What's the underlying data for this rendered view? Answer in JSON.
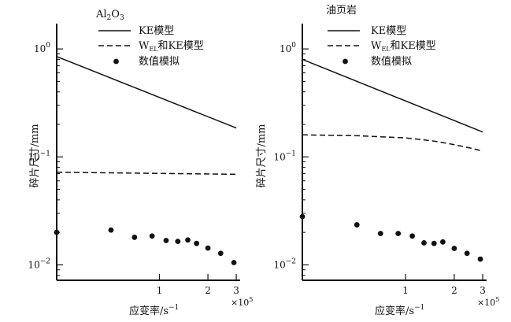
{
  "chart_data": [
    {
      "type": "line",
      "title": "Al2O3",
      "title_parts": [
        "Al",
        "2",
        "O",
        "3"
      ],
      "xlabel": "应变率/s",
      "xlabel_exp": "−1",
      "ylabel": "碎片尺寸/mm",
      "x_scale": "log",
      "y_scale": "log",
      "xlim": [
        23000,
        310000
      ],
      "ylim": [
        0.0072,
        1.45
      ],
      "x_ticks": [
        {
          "value": 100000,
          "label": "1"
        },
        {
          "value": 200000,
          "label": "2"
        },
        {
          "value": 300000,
          "label": "3"
        }
      ],
      "x_multiplier": {
        "base": "×10",
        "exp": "5"
      },
      "y_ticks": [
        {
          "value": 1,
          "base": "10",
          "exp": "0"
        },
        {
          "value": 0.1,
          "base": "10",
          "exp": "−1"
        },
        {
          "value": 0.01,
          "base": "10",
          "exp": "−2"
        }
      ],
      "legend_position": "top-right",
      "series": [
        {
          "name": "KE模型",
          "label": "KE模型",
          "style": "solid",
          "x": [
            23000,
            300000
          ],
          "y": [
            0.85,
            0.185
          ]
        },
        {
          "name": "WEL和KE模型",
          "label_parts": [
            "W",
            "EL",
            "和KE模型"
          ],
          "style": "dashed",
          "x": [
            23000,
            300000
          ],
          "y": [
            0.072,
            0.069
          ]
        },
        {
          "name": "数值模拟",
          "label": "数值模拟",
          "style": "markers",
          "x": [
            23000,
            50000,
            70000,
            90000,
            110000,
            130000,
            150000,
            170000,
            200000,
            240000,
            290000
          ],
          "y": [
            0.02,
            0.021,
            0.018,
            0.0185,
            0.0168,
            0.0165,
            0.017,
            0.0158,
            0.0143,
            0.0128,
            0.0105
          ]
        }
      ]
    },
    {
      "type": "line",
      "title": "油页岩",
      "xlabel": "应变率/s",
      "xlabel_exp": "−1",
      "ylabel": "碎片尺寸/mm",
      "x_scale": "log",
      "y_scale": "log",
      "xlim": [
        23000,
        310000
      ],
      "ylim": [
        0.0072,
        1.45
      ],
      "x_ticks": [
        {
          "value": 100000,
          "label": "1"
        },
        {
          "value": 200000,
          "label": "2"
        },
        {
          "value": 300000,
          "label": "3"
        }
      ],
      "x_multiplier": {
        "base": "×10",
        "exp": "5"
      },
      "y_ticks": [
        {
          "value": 1,
          "base": "10",
          "exp": "0"
        },
        {
          "value": 0.1,
          "base": "10",
          "exp": "−1"
        },
        {
          "value": 0.01,
          "base": "10",
          "exp": "−2"
        }
      ],
      "legend_position": "top-right",
      "series": [
        {
          "name": "KE模型",
          "label": "KE模型",
          "style": "solid",
          "x": [
            23000,
            300000
          ],
          "y": [
            0.8,
            0.17
          ]
        },
        {
          "name": "WEL和KE模型",
          "label_parts": [
            "W",
            "EL",
            "和KE模型"
          ],
          "style": "dashed",
          "x": [
            23000,
            50000,
            100000,
            150000,
            200000,
            250000,
            300000
          ],
          "y": [
            0.16,
            0.157,
            0.15,
            0.14,
            0.13,
            0.121,
            0.113
          ]
        },
        {
          "name": "数值模拟",
          "label": "数值模拟",
          "style": "markers",
          "x": [
            23000,
            50000,
            70000,
            90000,
            110000,
            130000,
            150000,
            170000,
            200000,
            240000,
            290000
          ],
          "y": [
            0.028,
            0.0235,
            0.0195,
            0.0195,
            0.0185,
            0.016,
            0.0158,
            0.0163,
            0.0142,
            0.0128,
            0.0113
          ]
        }
      ]
    }
  ]
}
